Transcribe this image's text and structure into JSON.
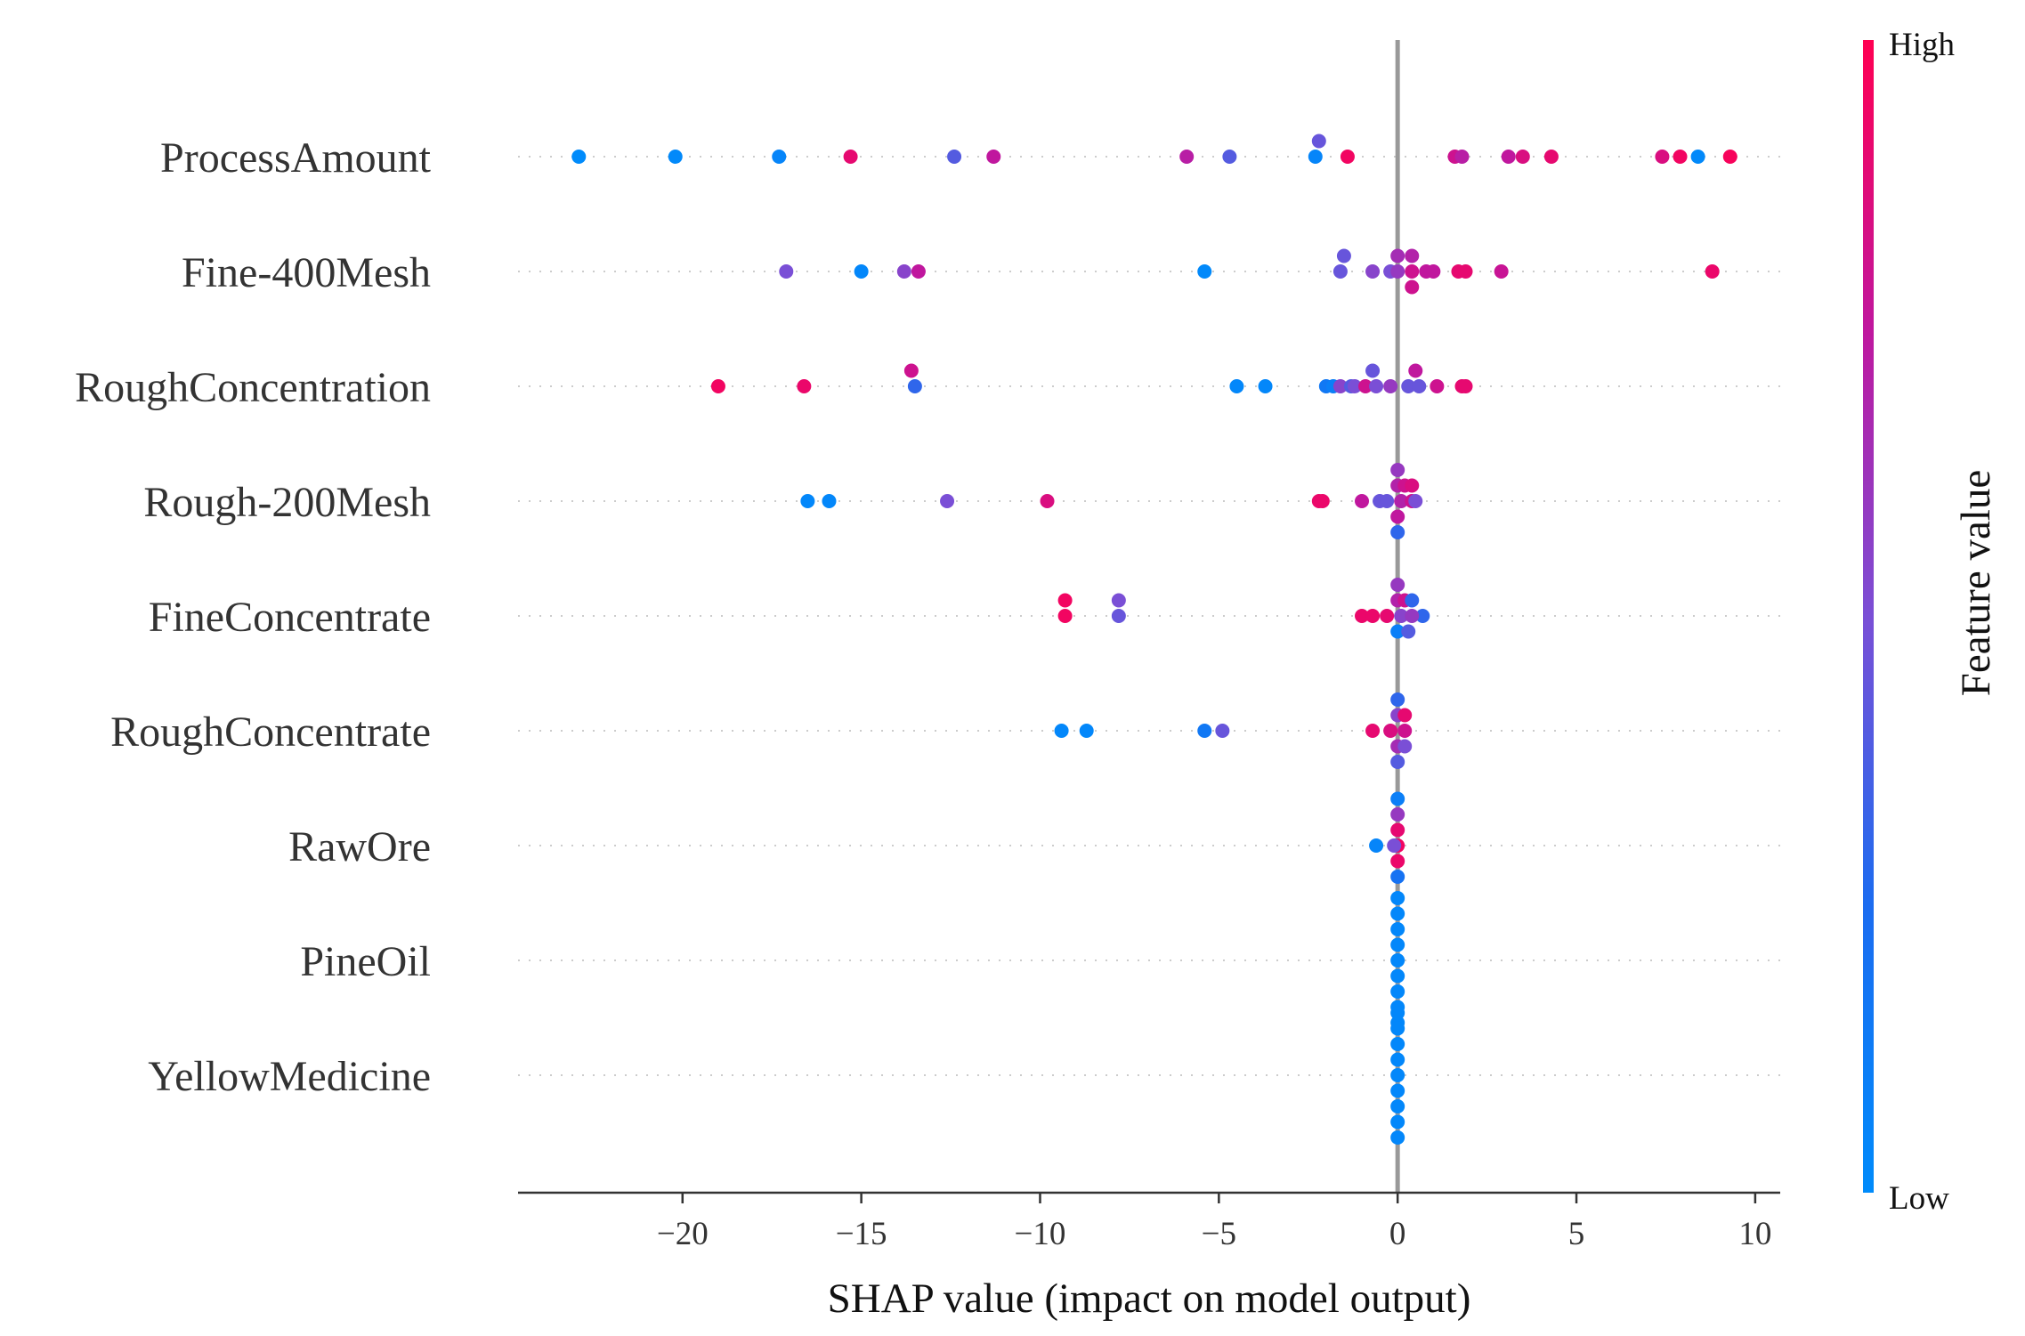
{
  "chart_data": {
    "type": "scatter",
    "subtype": "shap-beeswarm",
    "title": "",
    "xlabel": "SHAP value (impact on model output)",
    "xlim": [
      -24.6,
      10.7
    ],
    "xticks": [
      -20,
      -15,
      -10,
      -5,
      0,
      5,
      10
    ],
    "xtick_labels": [
      "−20",
      "−15",
      "−10",
      "−5",
      "0",
      "5",
      "10"
    ],
    "colorbar": {
      "label": "Feature value",
      "high": "High",
      "low": "Low",
      "high_color": "#ff0052",
      "low_color": "#008bfb"
    },
    "colors": {
      "low": "#008bfb",
      "high": "#ff0052",
      "zero_line": "#999999",
      "row_line": "#cccccc",
      "axis": "#333333"
    },
    "features": [
      {
        "name": "ProcessAmount",
        "points": [
          {
            "x": -22.9,
            "o": 0,
            "v": 0.0
          },
          {
            "x": -20.2,
            "o": 0,
            "v": 0.02
          },
          {
            "x": -17.3,
            "o": 0,
            "v": 0.05
          },
          {
            "x": -15.3,
            "o": 0,
            "v": 0.9
          },
          {
            "x": -12.4,
            "o": 0,
            "v": 0.4
          },
          {
            "x": -11.3,
            "o": 0,
            "v": 0.75
          },
          {
            "x": -5.9,
            "o": 0,
            "v": 0.72
          },
          {
            "x": -4.7,
            "o": 0,
            "v": 0.4
          },
          {
            "x": -2.3,
            "o": 0,
            "v": 0.05
          },
          {
            "x": -2.2,
            "o": -1,
            "v": 0.45
          },
          {
            "x": -1.4,
            "o": 0,
            "v": 0.95
          },
          {
            "x": 1.6,
            "o": 0,
            "v": 0.8
          },
          {
            "x": 1.8,
            "o": 0,
            "v": 0.72
          },
          {
            "x": 3.1,
            "o": 0,
            "v": 0.75
          },
          {
            "x": 3.5,
            "o": 0,
            "v": 0.85
          },
          {
            "x": 4.3,
            "o": 0,
            "v": 0.9
          },
          {
            "x": 7.4,
            "o": 0,
            "v": 0.85
          },
          {
            "x": 7.9,
            "o": 0,
            "v": 0.95
          },
          {
            "x": 8.4,
            "o": 0,
            "v": 0.02
          },
          {
            "x": 9.3,
            "o": 0,
            "v": 0.97
          }
        ]
      },
      {
        "name": "Fine-400Mesh",
        "points": [
          {
            "x": -17.1,
            "o": 0,
            "v": 0.5
          },
          {
            "x": -15.0,
            "o": 0,
            "v": 0.03
          },
          {
            "x": -13.8,
            "o": 0,
            "v": 0.55
          },
          {
            "x": -13.4,
            "o": 0,
            "v": 0.75
          },
          {
            "x": -5.4,
            "o": 0,
            "v": 0.02
          },
          {
            "x": -1.6,
            "o": 0,
            "v": 0.45
          },
          {
            "x": -1.5,
            "o": -1,
            "v": 0.45
          },
          {
            "x": -0.7,
            "o": 0,
            "v": 0.55
          },
          {
            "x": -0.2,
            "o": 0,
            "v": 0.5
          },
          {
            "x": 0.0,
            "o": 0,
            "v": 0.6
          },
          {
            "x": 0.0,
            "o": -1,
            "v": 0.65
          },
          {
            "x": 0.4,
            "o": -1,
            "v": 0.7
          },
          {
            "x": 0.4,
            "o": 0,
            "v": 0.8
          },
          {
            "x": 0.4,
            "o": 1,
            "v": 0.8
          },
          {
            "x": 0.8,
            "o": 0,
            "v": 0.75
          },
          {
            "x": 1.0,
            "o": 0,
            "v": 0.75
          },
          {
            "x": 1.7,
            "o": 0,
            "v": 0.9
          },
          {
            "x": 1.9,
            "o": 0,
            "v": 0.9
          },
          {
            "x": 2.9,
            "o": 0,
            "v": 0.78
          },
          {
            "x": 8.8,
            "o": 0,
            "v": 0.92
          }
        ]
      },
      {
        "name": "RoughConcentration",
        "points": [
          {
            "x": -19.0,
            "o": 0,
            "v": 0.95
          },
          {
            "x": -16.6,
            "o": 0,
            "v": 0.92
          },
          {
            "x": -13.6,
            "o": -1,
            "v": 0.8
          },
          {
            "x": -13.5,
            "o": 0,
            "v": 0.3
          },
          {
            "x": -4.5,
            "o": 0,
            "v": 0.03
          },
          {
            "x": -3.7,
            "o": 0,
            "v": 0.03
          },
          {
            "x": -2.0,
            "o": 0,
            "v": 0.15
          },
          {
            "x": -1.8,
            "o": 0,
            "v": 0.1
          },
          {
            "x": -1.6,
            "o": 0,
            "v": 0.55
          },
          {
            "x": -1.3,
            "o": 0,
            "v": 0.4
          },
          {
            "x": -1.2,
            "o": 0,
            "v": 0.5
          },
          {
            "x": -0.9,
            "o": 0,
            "v": 0.8
          },
          {
            "x": -0.6,
            "o": 0,
            "v": 0.5
          },
          {
            "x": -0.7,
            "o": -1,
            "v": 0.45
          },
          {
            "x": -0.2,
            "o": 0,
            "v": 0.6
          },
          {
            "x": 0.3,
            "o": 0,
            "v": 0.45
          },
          {
            "x": 0.5,
            "o": -1,
            "v": 0.75
          },
          {
            "x": 0.6,
            "o": 0,
            "v": 0.45
          },
          {
            "x": 1.1,
            "o": 0,
            "v": 0.8
          },
          {
            "x": 1.8,
            "o": 0,
            "v": 0.9
          },
          {
            "x": 1.9,
            "o": 0,
            "v": 0.9
          }
        ]
      },
      {
        "name": "Rough-200Mesh",
        "points": [
          {
            "x": -16.5,
            "o": 0,
            "v": 0.03
          },
          {
            "x": -15.9,
            "o": 0,
            "v": 0.03
          },
          {
            "x": -12.6,
            "o": 0,
            "v": 0.5
          },
          {
            "x": -9.8,
            "o": 0,
            "v": 0.85
          },
          {
            "x": -2.2,
            "o": 0,
            "v": 0.92
          },
          {
            "x": -2.1,
            "o": 0,
            "v": 0.92
          },
          {
            "x": -1.0,
            "o": 0,
            "v": 0.75
          },
          {
            "x": -0.5,
            "o": 0,
            "v": 0.45
          },
          {
            "x": -0.3,
            "o": 0,
            "v": 0.45
          },
          {
            "x": 0.0,
            "o": -1,
            "v": 0.7
          },
          {
            "x": 0.0,
            "o": -2,
            "v": 0.6
          },
          {
            "x": 0.1,
            "o": 0,
            "v": 0.7
          },
          {
            "x": 0.2,
            "o": -1,
            "v": 0.8
          },
          {
            "x": 0.4,
            "o": 0,
            "v": 0.8
          },
          {
            "x": 0.4,
            "o": -1,
            "v": 0.85
          },
          {
            "x": 0.5,
            "o": 0,
            "v": 0.5
          },
          {
            "x": 0.0,
            "o": 1,
            "v": 0.75
          },
          {
            "x": 0.0,
            "o": 2,
            "v": 0.3
          }
        ]
      },
      {
        "name": "FineConcentrate",
        "points": [
          {
            "x": -9.3,
            "o": -1,
            "v": 0.95
          },
          {
            "x": -9.3,
            "o": 0,
            "v": 0.95
          },
          {
            "x": -7.8,
            "o": -1,
            "v": 0.5
          },
          {
            "x": -7.8,
            "o": 0,
            "v": 0.45
          },
          {
            "x": -1.0,
            "o": 0,
            "v": 0.92
          },
          {
            "x": -0.7,
            "o": 0,
            "v": 0.92
          },
          {
            "x": -0.3,
            "o": 0,
            "v": 0.9
          },
          {
            "x": 0.0,
            "o": -1,
            "v": 0.7
          },
          {
            "x": 0.0,
            "o": -2,
            "v": 0.6
          },
          {
            "x": 0.2,
            "o": -1,
            "v": 0.8
          },
          {
            "x": 0.4,
            "o": -1,
            "v": 0.3
          },
          {
            "x": 0.7,
            "o": 0,
            "v": 0.3
          },
          {
            "x": 0.0,
            "o": 1,
            "v": 0.1
          },
          {
            "x": 0.3,
            "o": 1,
            "v": 0.4
          },
          {
            "x": 0.1,
            "o": 0,
            "v": 0.55
          },
          {
            "x": 0.4,
            "o": 0,
            "v": 0.6
          }
        ]
      },
      {
        "name": "RoughConcentrate",
        "points": [
          {
            "x": -9.4,
            "o": 0,
            "v": 0.03
          },
          {
            "x": -8.7,
            "o": 0,
            "v": 0.03
          },
          {
            "x": -5.4,
            "o": 0,
            "v": 0.15
          },
          {
            "x": -4.9,
            "o": 0,
            "v": 0.45
          },
          {
            "x": -0.7,
            "o": 0,
            "v": 0.9
          },
          {
            "x": -0.2,
            "o": 0,
            "v": 0.85
          },
          {
            "x": 0.0,
            "o": -2,
            "v": 0.3
          },
          {
            "x": 0.0,
            "o": -1,
            "v": 0.55
          },
          {
            "x": 0.2,
            "o": -1,
            "v": 0.9
          },
          {
            "x": 0.2,
            "o": 0,
            "v": 0.8
          },
          {
            "x": 0.0,
            "o": 1,
            "v": 0.65
          },
          {
            "x": 0.2,
            "o": 1,
            "v": 0.5
          },
          {
            "x": 0.0,
            "o": 2,
            "v": 0.4
          }
        ]
      },
      {
        "name": "RawOre",
        "points": [
          {
            "x": -0.6,
            "o": 0,
            "v": 0.05
          },
          {
            "x": 0.0,
            "o": -3,
            "v": 0.1
          },
          {
            "x": 0.0,
            "o": -2,
            "v": 0.6
          },
          {
            "x": 0.0,
            "o": -1,
            "v": 0.9
          },
          {
            "x": 0.0,
            "o": 0,
            "v": 0.95
          },
          {
            "x": 0.0,
            "o": 1,
            "v": 0.92
          },
          {
            "x": 0.0,
            "o": 2,
            "v": 0.2
          },
          {
            "x": -0.1,
            "o": 0,
            "v": 0.5
          }
        ]
      },
      {
        "name": "PineOil",
        "points": [
          {
            "x": 0.0,
            "o": -4,
            "v": 0.03
          },
          {
            "x": 0.0,
            "o": -3,
            "v": 0.03
          },
          {
            "x": 0.0,
            "o": -2,
            "v": 0.03
          },
          {
            "x": 0.0,
            "o": -1,
            "v": 0.03
          },
          {
            "x": 0.0,
            "o": 0,
            "v": 0.03
          },
          {
            "x": 0.0,
            "o": 1,
            "v": 0.03
          },
          {
            "x": 0.0,
            "o": 2,
            "v": 0.03
          },
          {
            "x": 0.0,
            "o": 3,
            "v": 0.03
          },
          {
            "x": 0.0,
            "o": 4,
            "v": 0.03
          }
        ]
      },
      {
        "name": "YellowMedicine",
        "points": [
          {
            "x": 0.0,
            "o": -4,
            "v": 0.03
          },
          {
            "x": 0.0,
            "o": -3,
            "v": 0.03
          },
          {
            "x": 0.0,
            "o": -2,
            "v": 0.03
          },
          {
            "x": 0.0,
            "o": -1,
            "v": 0.03
          },
          {
            "x": 0.0,
            "o": 0,
            "v": 0.03
          },
          {
            "x": 0.0,
            "o": 1,
            "v": 0.03
          },
          {
            "x": 0.0,
            "o": 2,
            "v": 0.03
          },
          {
            "x": 0.0,
            "o": 3,
            "v": 0.03
          },
          {
            "x": 0.0,
            "o": 4,
            "v": 0.03
          }
        ]
      }
    ]
  }
}
